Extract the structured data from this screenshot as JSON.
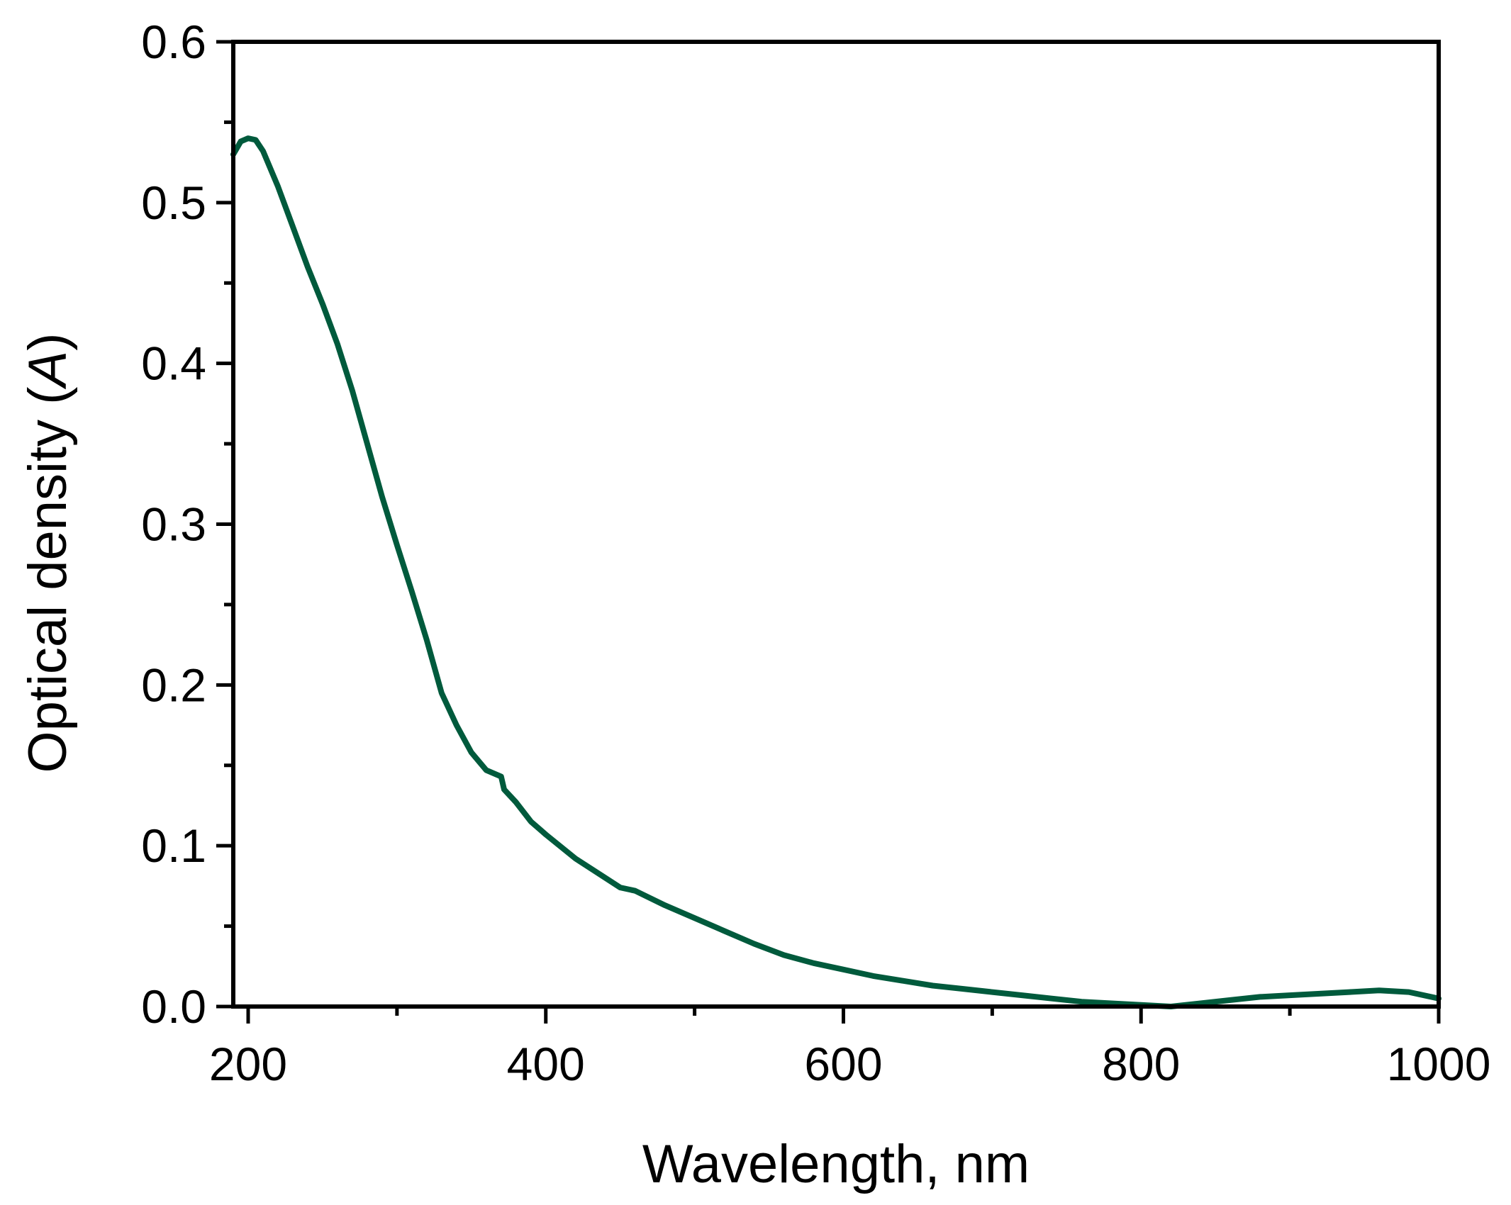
{
  "chart_data": {
    "type": "line",
    "title": "",
    "xlabel": "Wavelength, nm",
    "ylabel_main": "Optical density (",
    "ylabel_italic": "A",
    "ylabel_close": ")",
    "xlim": [
      190,
      1000
    ],
    "ylim": [
      0.0,
      0.6
    ],
    "x_ticks": [
      200,
      400,
      600,
      800,
      1000
    ],
    "x_tick_labels": [
      "200",
      "400",
      "600",
      "800",
      "1000"
    ],
    "x_minor_ticks": [
      300,
      500,
      700,
      900
    ],
    "y_ticks": [
      0.0,
      0.1,
      0.2,
      0.3,
      0.4,
      0.5,
      0.6
    ],
    "y_tick_labels": [
      "0.0",
      "0.1",
      "0.2",
      "0.3",
      "0.4",
      "0.5",
      "0.6"
    ],
    "y_minor_ticks": [
      0.05,
      0.15,
      0.25,
      0.35,
      0.45,
      0.55
    ],
    "grid": false,
    "legend": "none",
    "line_color": "#005a3c",
    "series": [
      {
        "x": [
          190,
          195,
          200,
          205,
          210,
          220,
          230,
          240,
          250,
          260,
          270,
          280,
          290,
          300,
          310,
          320,
          330,
          340,
          350,
          360,
          370,
          372,
          380,
          390,
          400,
          420,
          440,
          450,
          460,
          480,
          500,
          520,
          540,
          560,
          580,
          600,
          620,
          640,
          660,
          680,
          700,
          720,
          740,
          760,
          780,
          800,
          820,
          840,
          860,
          880,
          900,
          920,
          940,
          960,
          980,
          1000
        ],
        "y": [
          0.53,
          0.538,
          0.54,
          0.539,
          0.532,
          0.51,
          0.485,
          0.46,
          0.437,
          0.412,
          0.383,
          0.35,
          0.317,
          0.287,
          0.258,
          0.228,
          0.195,
          0.175,
          0.158,
          0.147,
          0.143,
          0.135,
          0.127,
          0.115,
          0.107,
          0.092,
          0.08,
          0.074,
          0.072,
          0.063,
          0.055,
          0.047,
          0.039,
          0.032,
          0.027,
          0.023,
          0.019,
          0.016,
          0.013,
          0.011,
          0.009,
          0.007,
          0.005,
          0.003,
          0.002,
          0.001,
          0.0,
          0.002,
          0.004,
          0.006,
          0.007,
          0.008,
          0.009,
          0.01,
          0.009,
          0.005
        ]
      }
    ]
  }
}
